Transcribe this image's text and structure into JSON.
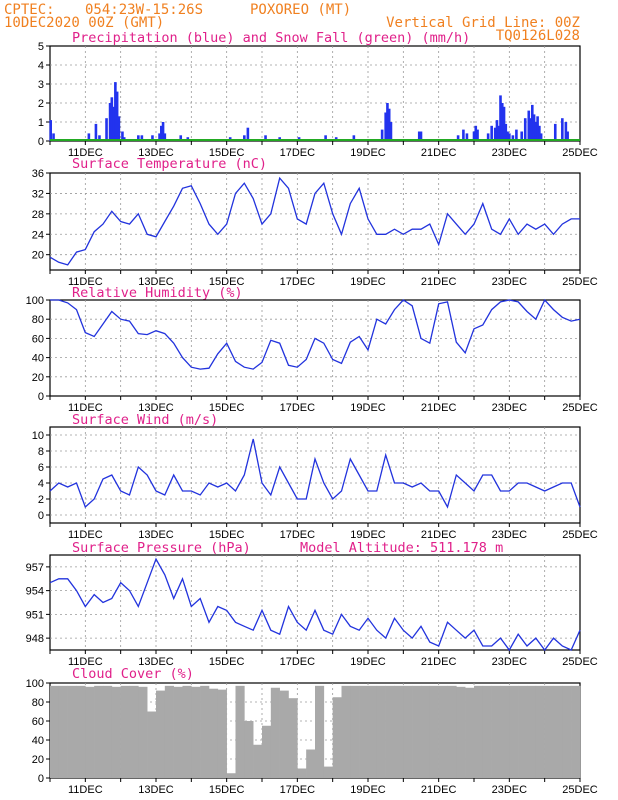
{
  "header": {
    "center": "CPTEC:",
    "coords": "054:23W-15:26S",
    "station": "POXOREO (MT)",
    "date": "10DEC2020 00Z (GMT)",
    "grid_note": "Vertical Grid Line: 00Z",
    "run_id": "TQ0126L028"
  },
  "colors": {
    "header": "#f08020",
    "title": "#e0208a",
    "line": "#2233dd",
    "precip": "#2233ee",
    "snow": "#22aa22",
    "cloud": "#a9a9a9",
    "grid": "#9a9a9a"
  },
  "x_labels": [
    "11DEC",
    "13DEC",
    "15DEC",
    "17DEC",
    "19DEC",
    "21DEC",
    "23DEC",
    "25DEC"
  ],
  "chart_data": [
    {
      "type": "bar",
      "title": "Precipitation (blue) and Snow Fall (green) (mm/h)",
      "ylim": [
        0,
        5
      ],
      "yticks": [
        0,
        1,
        2,
        3,
        4,
        5
      ],
      "x_unit": "days since 10DEC2020 00Z",
      "series": [
        {
          "name": "Precipitation",
          "points": [
            [
              0.02,
              1.1
            ],
            [
              0.1,
              0.4
            ],
            [
              1.1,
              0.4
            ],
            [
              1.3,
              0.9
            ],
            [
              1.4,
              0.3
            ],
            [
              1.6,
              1.2
            ],
            [
              1.7,
              2.0
            ],
            [
              1.75,
              2.3
            ],
            [
              1.8,
              1.8
            ],
            [
              1.85,
              3.1
            ],
            [
              1.9,
              2.6
            ],
            [
              1.95,
              1.3
            ],
            [
              2.05,
              0.5
            ],
            [
              2.1,
              0.2
            ],
            [
              2.5,
              0.3
            ],
            [
              2.6,
              0.3
            ],
            [
              2.9,
              0.3
            ],
            [
              3.1,
              0.4
            ],
            [
              3.15,
              0.8
            ],
            [
              3.2,
              1.0
            ],
            [
              3.25,
              0.4
            ],
            [
              3.7,
              0.3
            ],
            [
              3.9,
              0.2
            ],
            [
              5.1,
              0.2
            ],
            [
              5.5,
              0.3
            ],
            [
              5.6,
              0.7
            ],
            [
              6.1,
              0.3
            ],
            [
              6.5,
              0.2
            ],
            [
              7.05,
              0.2
            ],
            [
              7.5,
              0.1
            ],
            [
              7.8,
              0.3
            ],
            [
              8.1,
              0.2
            ],
            [
              8.6,
              0.3
            ],
            [
              9.4,
              0.6
            ],
            [
              9.5,
              1.5
            ],
            [
              9.55,
              2.0
            ],
            [
              9.6,
              1.7
            ],
            [
              9.65,
              1.0
            ],
            [
              10.45,
              0.5
            ],
            [
              10.5,
              0.5
            ],
            [
              11.55,
              0.3
            ],
            [
              11.7,
              0.6
            ],
            [
              11.8,
              0.4
            ],
            [
              12.0,
              0.5
            ],
            [
              12.05,
              0.8
            ],
            [
              12.1,
              0.6
            ],
            [
              12.4,
              0.4
            ],
            [
              12.5,
              0.8
            ],
            [
              12.6,
              0.7
            ],
            [
              12.65,
              1.1
            ],
            [
              12.7,
              0.8
            ],
            [
              12.75,
              2.4
            ],
            [
              12.8,
              2.0
            ],
            [
              12.85,
              1.8
            ],
            [
              12.9,
              0.9
            ],
            [
              12.95,
              0.5
            ],
            [
              13.0,
              0.4
            ],
            [
              13.1,
              0.3
            ],
            [
              13.2,
              0.6
            ],
            [
              13.35,
              0.5
            ],
            [
              13.45,
              1.2
            ],
            [
              13.55,
              1.6
            ],
            [
              13.6,
              1.2
            ],
            [
              13.65,
              1.9
            ],
            [
              13.7,
              1.4
            ],
            [
              13.75,
              1.0
            ],
            [
              13.8,
              1.3
            ],
            [
              13.85,
              0.8
            ],
            [
              13.9,
              0.4
            ],
            [
              14.3,
              0.9
            ],
            [
              14.5,
              1.2
            ],
            [
              14.6,
              1.0
            ],
            [
              14.65,
              0.5
            ]
          ]
        },
        {
          "name": "Snow Fall",
          "points": [
            [
              0,
              0.05
            ],
            [
              15,
              0.05
            ]
          ]
        }
      ]
    },
    {
      "type": "line",
      "title": "Surface Temperature (nC)",
      "ylim": [
        17,
        36
      ],
      "yticks": [
        20,
        24,
        28,
        32,
        36
      ],
      "x": [
        0,
        0.25,
        0.5,
        0.75,
        1,
        1.25,
        1.5,
        1.75,
        2,
        2.25,
        2.5,
        2.75,
        3,
        3.25,
        3.5,
        3.75,
        4,
        4.25,
        4.5,
        4.75,
        5,
        5.25,
        5.5,
        5.75,
        6,
        6.25,
        6.5,
        6.75,
        7,
        7.25,
        7.5,
        7.75,
        8,
        8.25,
        8.5,
        8.75,
        9,
        9.25,
        9.5,
        9.75,
        10,
        10.25,
        10.5,
        10.75,
        11,
        11.25,
        11.5,
        11.75,
        12,
        12.25,
        12.5,
        12.75,
        13,
        13.25,
        13.5,
        13.75,
        14,
        14.25,
        14.5,
        14.75,
        15
      ],
      "values": [
        19.5,
        18.5,
        18,
        20.5,
        21,
        24.5,
        26,
        28.5,
        26.5,
        26,
        28,
        24,
        23.5,
        26.5,
        29.5,
        33,
        33.5,
        30,
        26,
        24,
        26,
        32,
        34,
        31,
        26,
        28,
        35,
        33,
        27,
        26,
        32,
        34,
        28,
        24,
        30,
        33,
        27,
        24,
        24,
        25,
        24,
        25,
        25,
        26,
        22,
        28,
        26,
        24,
        26,
        30,
        25,
        24,
        27,
        24,
        26,
        25,
        26,
        24,
        26,
        27,
        27
      ]
    },
    {
      "type": "line",
      "title": "Relative Humidity (%)",
      "ylim": [
        0,
        100
      ],
      "yticks": [
        0,
        20,
        40,
        60,
        80,
        100
      ],
      "x": [
        0,
        0.25,
        0.5,
        0.75,
        1,
        1.25,
        1.5,
        1.75,
        2,
        2.25,
        2.5,
        2.75,
        3,
        3.25,
        3.5,
        3.75,
        4,
        4.25,
        4.5,
        4.75,
        5,
        5.25,
        5.5,
        5.75,
        6,
        6.25,
        6.5,
        6.75,
        7,
        7.25,
        7.5,
        7.75,
        8,
        8.25,
        8.5,
        8.75,
        9,
        9.25,
        9.5,
        9.75,
        10,
        10.25,
        10.5,
        10.75,
        11,
        11.25,
        11.5,
        11.75,
        12,
        12.25,
        12.5,
        12.75,
        13,
        13.25,
        13.5,
        13.75,
        14,
        14.25,
        14.5,
        14.75,
        15
      ],
      "values": [
        100,
        100,
        97,
        90,
        66,
        62,
        75,
        88,
        80,
        78,
        65,
        64,
        68,
        65,
        55,
        40,
        30,
        28,
        29,
        44,
        55,
        36,
        30,
        28,
        35,
        58,
        55,
        32,
        30,
        38,
        60,
        55,
        38,
        34,
        56,
        62,
        48,
        80,
        75,
        90,
        100,
        94,
        60,
        55,
        96,
        98,
        56,
        45,
        70,
        74,
        90,
        98,
        100,
        98,
        88,
        80,
        100,
        90,
        82,
        78,
        80
      ]
    },
    {
      "type": "line",
      "title": "Surface Wind (m/s)",
      "ylim": [
        -1,
        11
      ],
      "yticks": [
        0,
        2,
        4,
        6,
        8,
        10
      ],
      "x": [
        0,
        0.25,
        0.5,
        0.75,
        1,
        1.25,
        1.5,
        1.75,
        2,
        2.25,
        2.5,
        2.75,
        3,
        3.25,
        3.5,
        3.75,
        4,
        4.25,
        4.5,
        4.75,
        5,
        5.25,
        5.5,
        5.75,
        6,
        6.25,
        6.5,
        6.75,
        7,
        7.25,
        7.5,
        7.75,
        8,
        8.25,
        8.5,
        8.75,
        9,
        9.25,
        9.5,
        9.75,
        10,
        10.25,
        10.5,
        10.75,
        11,
        11.25,
        11.5,
        11.75,
        12,
        12.25,
        12.5,
        12.75,
        13,
        13.25,
        13.5,
        13.75,
        14,
        14.25,
        14.5,
        14.75,
        15
      ],
      "values": [
        3,
        4,
        3.5,
        4,
        1,
        2,
        4.5,
        5,
        3,
        2.5,
        6,
        5,
        3,
        2.5,
        5,
        3,
        3,
        2.5,
        4,
        3.5,
        4,
        3,
        5,
        9.5,
        4,
        2.5,
        6,
        4,
        2,
        2,
        7,
        4,
        2,
        3,
        7,
        5,
        3,
        3,
        7.5,
        4,
        4,
        3.5,
        4,
        3,
        3,
        1,
        5,
        4,
        3,
        5,
        5,
        3,
        3,
        4,
        4,
        3.5,
        3,
        3.5,
        4,
        4,
        1
      ]
    },
    {
      "type": "line",
      "title": "Surface Pressure (hPa)",
      "annotation": "Model Altitude: 511.178 m",
      "ylim": [
        946.5,
        958.5
      ],
      "yticks": [
        948,
        951,
        954,
        957
      ],
      "x": [
        0,
        0.25,
        0.5,
        0.75,
        1,
        1.25,
        1.5,
        1.75,
        2,
        2.25,
        2.5,
        2.75,
        3,
        3.25,
        3.5,
        3.75,
        4,
        4.25,
        4.5,
        4.75,
        5,
        5.25,
        5.5,
        5.75,
        6,
        6.25,
        6.5,
        6.75,
        7,
        7.25,
        7.5,
        7.75,
        8,
        8.25,
        8.5,
        8.75,
        9,
        9.25,
        9.5,
        9.75,
        10,
        10.25,
        10.5,
        10.75,
        11,
        11.25,
        11.5,
        11.75,
        12,
        12.25,
        12.5,
        12.75,
        13,
        13.25,
        13.5,
        13.75,
        14,
        14.25,
        14.5,
        14.75,
        15
      ],
      "values": [
        955,
        955.5,
        955.5,
        954,
        952,
        953.5,
        952.5,
        953,
        955,
        954,
        952,
        955,
        958,
        956,
        953,
        955.5,
        952,
        953,
        950,
        952,
        951.5,
        950,
        949.5,
        949,
        951.5,
        949,
        948.5,
        952,
        950,
        949,
        951.5,
        949,
        948.5,
        951,
        949.5,
        949,
        950.5,
        949,
        948,
        950.5,
        949,
        948,
        949.5,
        947.5,
        947,
        950,
        949,
        948,
        949,
        947,
        947,
        948,
        946.5,
        948.5,
        947,
        948,
        946.5,
        948,
        947,
        946.5,
        949
      ]
    },
    {
      "type": "bar",
      "title": "Cloud Cover (%)",
      "ylim": [
        0,
        100
      ],
      "yticks": [
        0,
        20,
        40,
        60,
        80,
        100
      ],
      "x_unit": "days since 10DEC2020 00Z",
      "x": [
        0,
        0.25,
        0.5,
        0.75,
        1,
        1.25,
        1.5,
        1.75,
        2,
        2.25,
        2.5,
        2.75,
        3,
        3.25,
        3.5,
        3.75,
        4,
        4.25,
        4.5,
        4.75,
        5,
        5.25,
        5.5,
        5.75,
        6,
        6.25,
        6.5,
        6.75,
        7,
        7.25,
        7.5,
        7.75,
        8,
        8.25,
        8.5,
        8.75,
        9,
        9.25,
        9.5,
        9.75,
        10,
        10.25,
        10.5,
        10.75,
        11,
        11.25,
        11.5,
        11.75,
        12,
        12.25,
        12.5,
        12.75,
        13,
        13.25,
        13.5,
        13.75,
        14,
        14.25,
        14.5,
        14.75
      ],
      "values": [
        97,
        97,
        97,
        97,
        96,
        97,
        97,
        96,
        97,
        97,
        96,
        70,
        92,
        97,
        96,
        97,
        96,
        97,
        94,
        93,
        5,
        97,
        60,
        35,
        55,
        95,
        92,
        84,
        10,
        30,
        97,
        12,
        85,
        97,
        97,
        97,
        97,
        97,
        97,
        97,
        97,
        97,
        97,
        97,
        97,
        97,
        96,
        95,
        97,
        97,
        97,
        97,
        97,
        97,
        97,
        97,
        97,
        97,
        97,
        97
      ]
    }
  ]
}
